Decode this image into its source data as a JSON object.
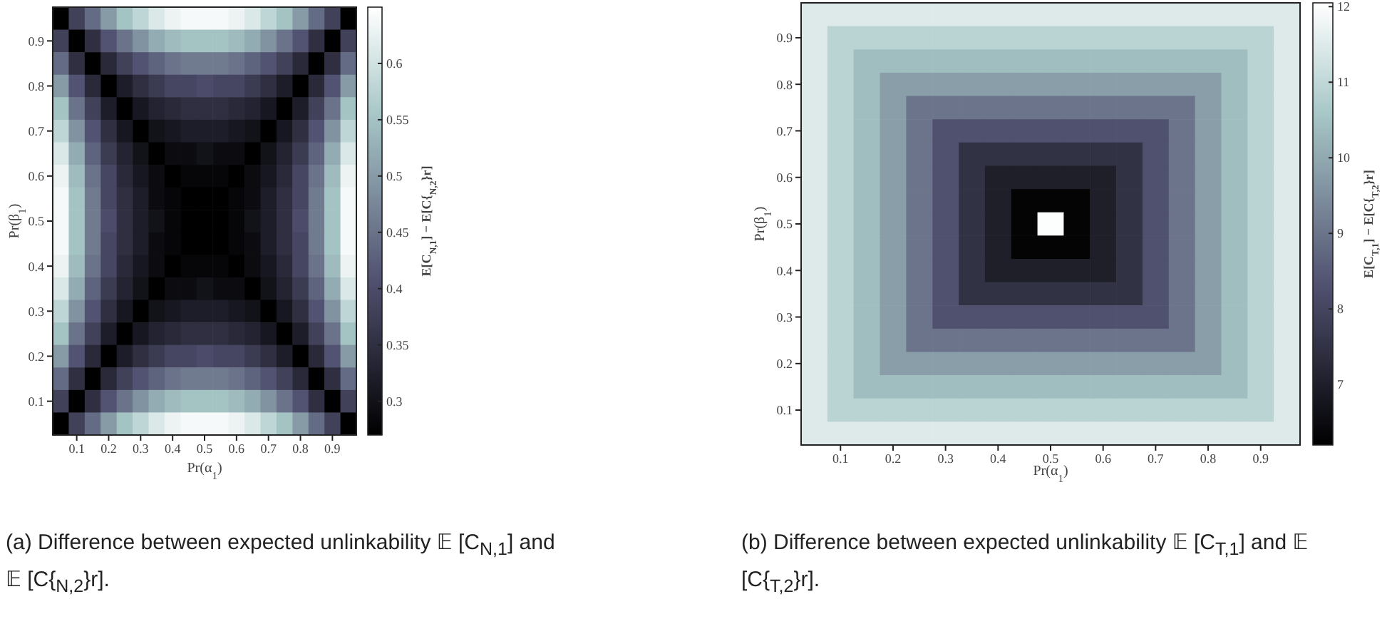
{
  "chart_data": [
    {
      "type": "heatmap",
      "xlabel": "Pr(α$_{1}$)",
      "ylabel": "Pr(β$_{1}$)",
      "clabel": "E[C$_{N,1}$] − E[C{$_{N,2}$}r]",
      "x": [
        0.05,
        0.1,
        0.15,
        0.2,
        0.25,
        0.3,
        0.35,
        0.4,
        0.45,
        0.5,
        0.55,
        0.6,
        0.65,
        0.7,
        0.75,
        0.8,
        0.85,
        0.9,
        0.95
      ],
      "y": [
        0.95,
        0.9,
        0.85,
        0.8,
        0.75,
        0.7,
        0.65,
        0.6,
        0.55,
        0.5,
        0.45,
        0.4,
        0.35,
        0.3,
        0.25,
        0.2,
        0.15,
        0.1,
        0.05
      ],
      "xlim": [
        0.025,
        0.975
      ],
      "ylim": [
        0.025,
        0.975
      ],
      "xticks": [
        0.1,
        0.2,
        0.3,
        0.4,
        0.5,
        0.6,
        0.7,
        0.8,
        0.9
      ],
      "yticks": [
        0.1,
        0.2,
        0.3,
        0.4,
        0.5,
        0.6,
        0.7,
        0.8,
        0.9
      ],
      "clim": [
        0.27,
        0.65
      ],
      "cticks": [
        0.3,
        0.35,
        0.4,
        0.45,
        0.5,
        0.55,
        0.6
      ],
      "cells": [
        [
          0.27,
          0.38,
          0.44,
          0.5,
          0.55,
          0.58,
          0.61,
          0.63,
          0.64,
          0.64,
          0.64,
          0.63,
          0.61,
          0.58,
          0.55,
          0.5,
          0.44,
          0.38,
          0.27
        ],
        [
          0.38,
          0.27,
          0.35,
          0.41,
          0.45,
          0.49,
          0.52,
          0.54,
          0.55,
          0.55,
          0.55,
          0.54,
          0.52,
          0.49,
          0.45,
          0.41,
          0.35,
          0.27,
          0.38
        ],
        [
          0.44,
          0.35,
          0.27,
          0.34,
          0.38,
          0.41,
          0.43,
          0.45,
          0.46,
          0.46,
          0.46,
          0.45,
          0.43,
          0.41,
          0.38,
          0.34,
          0.27,
          0.35,
          0.44
        ],
        [
          0.5,
          0.41,
          0.34,
          0.27,
          0.32,
          0.35,
          0.37,
          0.39,
          0.39,
          0.4,
          0.39,
          0.39,
          0.37,
          0.35,
          0.32,
          0.27,
          0.34,
          0.41,
          0.5
        ],
        [
          0.55,
          0.45,
          0.38,
          0.32,
          0.27,
          0.31,
          0.33,
          0.34,
          0.35,
          0.35,
          0.35,
          0.34,
          0.33,
          0.31,
          0.27,
          0.32,
          0.38,
          0.45,
          0.55
        ],
        [
          0.58,
          0.49,
          0.41,
          0.35,
          0.31,
          0.27,
          0.3,
          0.31,
          0.32,
          0.32,
          0.32,
          0.31,
          0.3,
          0.27,
          0.31,
          0.35,
          0.41,
          0.49,
          0.58
        ],
        [
          0.61,
          0.52,
          0.43,
          0.37,
          0.33,
          0.3,
          0.27,
          0.29,
          0.29,
          0.3,
          0.29,
          0.29,
          0.27,
          0.3,
          0.33,
          0.37,
          0.43,
          0.52,
          0.61
        ],
        [
          0.63,
          0.54,
          0.45,
          0.39,
          0.34,
          0.31,
          0.29,
          0.27,
          0.28,
          0.28,
          0.28,
          0.27,
          0.29,
          0.31,
          0.34,
          0.39,
          0.45,
          0.54,
          0.63
        ],
        [
          0.64,
          0.55,
          0.46,
          0.39,
          0.35,
          0.32,
          0.29,
          0.28,
          0.27,
          0.27,
          0.27,
          0.28,
          0.29,
          0.32,
          0.35,
          0.39,
          0.46,
          0.55,
          0.64
        ],
        [
          0.64,
          0.55,
          0.46,
          0.4,
          0.35,
          0.32,
          0.3,
          0.28,
          0.27,
          0.27,
          0.27,
          0.28,
          0.3,
          0.32,
          0.35,
          0.4,
          0.46,
          0.55,
          0.64
        ],
        [
          0.64,
          0.55,
          0.46,
          0.39,
          0.35,
          0.32,
          0.29,
          0.28,
          0.27,
          0.27,
          0.27,
          0.28,
          0.29,
          0.32,
          0.35,
          0.39,
          0.46,
          0.55,
          0.64
        ],
        [
          0.63,
          0.54,
          0.45,
          0.39,
          0.34,
          0.31,
          0.29,
          0.27,
          0.28,
          0.28,
          0.28,
          0.27,
          0.29,
          0.31,
          0.34,
          0.39,
          0.45,
          0.54,
          0.63
        ],
        [
          0.61,
          0.52,
          0.43,
          0.37,
          0.33,
          0.3,
          0.27,
          0.29,
          0.29,
          0.3,
          0.29,
          0.29,
          0.27,
          0.3,
          0.33,
          0.37,
          0.43,
          0.52,
          0.61
        ],
        [
          0.58,
          0.49,
          0.41,
          0.35,
          0.31,
          0.27,
          0.3,
          0.31,
          0.32,
          0.32,
          0.32,
          0.31,
          0.3,
          0.27,
          0.31,
          0.35,
          0.41,
          0.49,
          0.58
        ],
        [
          0.55,
          0.45,
          0.38,
          0.32,
          0.27,
          0.31,
          0.33,
          0.34,
          0.35,
          0.35,
          0.35,
          0.34,
          0.33,
          0.31,
          0.27,
          0.32,
          0.38,
          0.45,
          0.55
        ],
        [
          0.5,
          0.41,
          0.34,
          0.27,
          0.32,
          0.35,
          0.37,
          0.39,
          0.39,
          0.4,
          0.39,
          0.39,
          0.37,
          0.35,
          0.32,
          0.27,
          0.34,
          0.41,
          0.5
        ],
        [
          0.44,
          0.35,
          0.27,
          0.34,
          0.38,
          0.41,
          0.43,
          0.45,
          0.46,
          0.46,
          0.46,
          0.45,
          0.43,
          0.41,
          0.38,
          0.34,
          0.27,
          0.35,
          0.44
        ],
        [
          0.38,
          0.27,
          0.35,
          0.41,
          0.45,
          0.49,
          0.52,
          0.54,
          0.55,
          0.55,
          0.55,
          0.54,
          0.52,
          0.49,
          0.45,
          0.41,
          0.35,
          0.27,
          0.38
        ],
        [
          0.27,
          0.38,
          0.44,
          0.5,
          0.55,
          0.58,
          0.61,
          0.63,
          0.64,
          0.64,
          0.64,
          0.63,
          0.61,
          0.58,
          0.55,
          0.5,
          0.44,
          0.38,
          0.27
        ]
      ],
      "annotations": [
        "(a) Difference between expected unlinkability 𝔼 [C$_{N,1}$] and 𝔼 [C{$_{N,2}$}r]."
      ]
    },
    {
      "type": "heatmap",
      "xlabel": "Pr(α$_{1}$)",
      "ylabel": "Pr(β$_{1}$)",
      "clabel": "E[C$_{T,1}$] − E[C{$_{T,2}$}r]",
      "x": [
        0.05,
        0.1,
        0.15,
        0.2,
        0.25,
        0.3,
        0.35,
        0.4,
        0.45,
        0.5,
        0.55,
        0.6,
        0.65,
        0.7,
        0.75,
        0.8,
        0.85,
        0.9,
        0.95
      ],
      "y": [
        0.95,
        0.9,
        0.85,
        0.8,
        0.75,
        0.7,
        0.65,
        0.6,
        0.55,
        0.5,
        0.45,
        0.4,
        0.35,
        0.3,
        0.25,
        0.2,
        0.15,
        0.1,
        0.05
      ],
      "xlim": [
        0.025,
        0.975
      ],
      "ylim": [
        0.025,
        0.975
      ],
      "xticks": [
        0.1,
        0.2,
        0.3,
        0.4,
        0.5,
        0.6,
        0.7,
        0.8,
        0.9
      ],
      "yticks": [
        0.1,
        0.2,
        0.3,
        0.4,
        0.5,
        0.6,
        0.7,
        0.8,
        0.9
      ],
      "clim": [
        6.2,
        12.05
      ],
      "cticks": [
        7,
        8,
        9,
        10,
        11,
        12
      ],
      "cells": [
        [
          11.5,
          11.5,
          11.5,
          11.5,
          11.5,
          11.5,
          11.5,
          11.5,
          11.5,
          11.5,
          11.5,
          11.5,
          11.5,
          11.5,
          11.5,
          11.5,
          11.5,
          11.5,
          11.5
        ],
        [
          11.5,
          10.9,
          10.9,
          10.9,
          10.9,
          10.9,
          10.9,
          10.9,
          10.9,
          10.9,
          10.9,
          10.9,
          10.9,
          10.9,
          10.9,
          10.9,
          10.9,
          10.9,
          11.5
        ],
        [
          11.5,
          10.9,
          10.4,
          10.4,
          10.4,
          10.4,
          10.4,
          10.4,
          10.4,
          10.4,
          10.4,
          10.4,
          10.4,
          10.4,
          10.4,
          10.4,
          10.4,
          10.9,
          11.5
        ],
        [
          11.5,
          10.9,
          10.4,
          9.8,
          9.8,
          9.8,
          9.8,
          9.8,
          9.8,
          9.8,
          9.8,
          9.8,
          9.8,
          9.8,
          9.8,
          9.8,
          10.4,
          10.9,
          11.5
        ],
        [
          11.5,
          10.9,
          10.4,
          9.8,
          9.0,
          9.0,
          9.0,
          9.0,
          9.0,
          9.0,
          9.0,
          9.0,
          9.0,
          9.0,
          9.0,
          9.8,
          10.4,
          10.9,
          11.5
        ],
        [
          11.5,
          10.9,
          10.4,
          9.8,
          9.0,
          8.3,
          8.3,
          8.3,
          8.3,
          8.3,
          8.3,
          8.3,
          8.3,
          8.3,
          9.0,
          9.8,
          10.4,
          10.9,
          11.5
        ],
        [
          11.5,
          10.9,
          10.4,
          9.8,
          9.0,
          8.3,
          7.5,
          7.5,
          7.5,
          7.5,
          7.5,
          7.5,
          7.5,
          8.3,
          9.0,
          9.8,
          10.4,
          10.9,
          11.5
        ],
        [
          11.5,
          10.9,
          10.4,
          9.8,
          9.0,
          8.3,
          7.5,
          7.0,
          7.0,
          7.0,
          7.0,
          7.0,
          7.5,
          8.3,
          9.0,
          9.8,
          10.4,
          10.9,
          11.5
        ],
        [
          11.5,
          10.9,
          10.4,
          9.8,
          9.0,
          8.3,
          7.5,
          7.0,
          6.3,
          6.3,
          6.3,
          7.0,
          7.5,
          8.3,
          9.0,
          9.8,
          10.4,
          10.9,
          11.5
        ],
        [
          11.5,
          10.9,
          10.4,
          9.8,
          9.0,
          8.3,
          7.5,
          7.0,
          6.3,
          12,
          6.3,
          7.0,
          7.5,
          8.3,
          9.0,
          9.8,
          10.4,
          10.9,
          11.5
        ],
        [
          11.5,
          10.9,
          10.4,
          9.8,
          9.0,
          8.3,
          7.5,
          7.0,
          6.3,
          6.3,
          6.3,
          7.0,
          7.5,
          8.3,
          9.0,
          9.8,
          10.4,
          10.9,
          11.5
        ],
        [
          11.5,
          10.9,
          10.4,
          9.8,
          9.0,
          8.3,
          7.5,
          7.0,
          7.0,
          7.0,
          7.0,
          7.0,
          7.5,
          8.3,
          9.0,
          9.8,
          10.4,
          10.9,
          11.5
        ],
        [
          11.5,
          10.9,
          10.4,
          9.8,
          9.0,
          8.3,
          7.5,
          7.5,
          7.5,
          7.5,
          7.5,
          7.5,
          7.5,
          8.3,
          9.0,
          9.8,
          10.4,
          10.9,
          11.5
        ],
        [
          11.5,
          10.9,
          10.4,
          9.8,
          9.0,
          8.3,
          8.3,
          8.3,
          8.3,
          8.3,
          8.3,
          8.3,
          8.3,
          8.3,
          9.0,
          9.8,
          10.4,
          10.9,
          11.5
        ],
        [
          11.5,
          10.9,
          10.4,
          9.8,
          9.0,
          9.0,
          9.0,
          9.0,
          9.0,
          9.0,
          9.0,
          9.0,
          9.0,
          9.0,
          9.0,
          9.8,
          10.4,
          10.9,
          11.5
        ],
        [
          11.5,
          10.9,
          10.4,
          9.8,
          9.8,
          9.8,
          9.8,
          9.8,
          9.8,
          9.8,
          9.8,
          9.8,
          9.8,
          9.8,
          9.8,
          9.8,
          10.4,
          10.9,
          11.5
        ],
        [
          11.5,
          10.9,
          10.4,
          10.4,
          10.4,
          10.4,
          10.4,
          10.4,
          10.4,
          10.4,
          10.4,
          10.4,
          10.4,
          10.4,
          10.4,
          10.4,
          10.4,
          10.9,
          11.5
        ],
        [
          11.5,
          10.9,
          10.9,
          10.9,
          10.9,
          10.9,
          10.9,
          10.9,
          10.9,
          10.9,
          10.9,
          10.9,
          10.9,
          10.9,
          10.9,
          10.9,
          10.9,
          10.9,
          11.5
        ],
        [
          11.5,
          11.5,
          11.5,
          11.5,
          11.5,
          11.5,
          11.5,
          11.5,
          11.5,
          11.5,
          11.5,
          11.5,
          11.5,
          11.5,
          11.5,
          11.5,
          11.5,
          11.5,
          11.5
        ]
      ],
      "annotations": [
        "(b) Difference between expected unlinkability 𝔼 [C$_{T,1}$] and 𝔼 [C{$_{T,2}$}r]."
      ]
    }
  ]
}
